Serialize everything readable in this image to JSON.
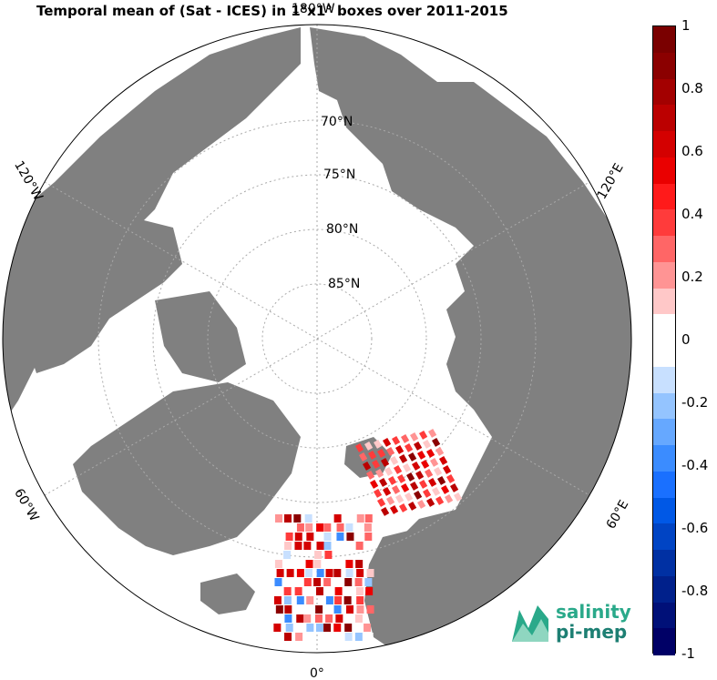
{
  "title": "Temporal mean of (Sat - ICES) in 1°x1° boxes over 2011-2015",
  "map": {
    "projection": "north-polar-stereographic",
    "land_color": "#808080",
    "ocean_color": "#ffffff",
    "lat_labels": [
      "70°N",
      "75°N",
      "80°N",
      "85°N"
    ],
    "lon_labels": [
      "0°",
      "60°E",
      "120°E",
      "180°W",
      "120°W",
      "60°W"
    ]
  },
  "colorbar": {
    "min": -1,
    "max": 1,
    "tick_labels": [
      "1",
      "0.8",
      "0.6",
      "0.4",
      "0.2",
      "0",
      "-0.2",
      "-0.4",
      "-0.6",
      "-0.8",
      "-1"
    ],
    "colors_top_to_bottom": [
      "#7a0000",
      "#8b0000",
      "#a30000",
      "#bb0000",
      "#d40000",
      "#ea0000",
      "#ff1a1a",
      "#ff3b3b",
      "#ff6666",
      "#ff9494",
      "#ffc8c8",
      "#ffffff",
      "#ffffff",
      "#c8e0ff",
      "#94c4ff",
      "#66a8ff",
      "#3b8cff",
      "#1a70ff",
      "#0058e6",
      "#0044c4",
      "#0030a3",
      "#00208b",
      "#001078",
      "#000066"
    ]
  },
  "logo": {
    "line1": "salinity",
    "line2": "pi-mep"
  }
}
